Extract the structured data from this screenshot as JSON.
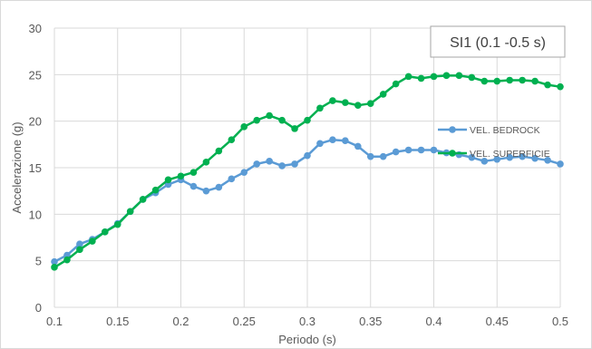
{
  "chart_data": {
    "type": "line",
    "xlabel": "Periodo (s)",
    "ylabel": "Accelerazione (g)",
    "xlim": [
      0.1,
      0.5
    ],
    "ylim": [
      0,
      30
    ],
    "xticks": [
      0.1,
      0.15,
      0.2,
      0.25,
      0.3,
      0.35,
      0.4,
      0.45,
      0.5
    ],
    "xtick_labels": [
      "0.1",
      "0.15",
      "0.2",
      "0.25",
      "0.3",
      "0.35",
      "0.4",
      "0.45",
      "0.5"
    ],
    "yticks": [
      0,
      5,
      10,
      15,
      20,
      25,
      30
    ],
    "ytick_labels": [
      "0",
      "5",
      "10",
      "15",
      "20",
      "25",
      "30"
    ],
    "grid": true,
    "legend_position": "right",
    "annotation": "SI1 (0.1 -0.5 s)",
    "series": [
      {
        "name": "VEL. BEDROCK",
        "color": "#5b9bd5",
        "x": [
          0.1,
          0.11,
          0.12,
          0.13,
          0.14,
          0.15,
          0.16,
          0.17,
          0.18,
          0.19,
          0.2,
          0.21,
          0.22,
          0.23,
          0.24,
          0.25,
          0.26,
          0.27,
          0.28,
          0.29,
          0.3,
          0.31,
          0.32,
          0.33,
          0.34,
          0.35,
          0.36,
          0.37,
          0.38,
          0.39,
          0.4,
          0.41,
          0.42,
          0.43,
          0.44,
          0.45,
          0.46,
          0.47,
          0.48,
          0.49,
          0.5
        ],
        "values": [
          4.9,
          5.6,
          6.8,
          7.3,
          8.1,
          9.0,
          10.3,
          11.6,
          12.3,
          13.2,
          13.7,
          13.0,
          12.5,
          12.9,
          13.8,
          14.5,
          15.4,
          15.7,
          15.2,
          15.4,
          16.3,
          17.6,
          18.0,
          17.9,
          17.3,
          16.2,
          16.2,
          16.7,
          16.9,
          16.9,
          16.9,
          16.6,
          16.4,
          16.1,
          15.7,
          15.9,
          16.1,
          16.2,
          16.0,
          15.8,
          15.4
        ]
      },
      {
        "name": "VEL. SUPERFICIE",
        "color": "#00b050",
        "x": [
          0.1,
          0.11,
          0.12,
          0.13,
          0.14,
          0.15,
          0.16,
          0.17,
          0.18,
          0.19,
          0.2,
          0.21,
          0.22,
          0.23,
          0.24,
          0.25,
          0.26,
          0.27,
          0.28,
          0.29,
          0.3,
          0.31,
          0.32,
          0.33,
          0.34,
          0.35,
          0.36,
          0.37,
          0.38,
          0.39,
          0.4,
          0.41,
          0.42,
          0.43,
          0.44,
          0.45,
          0.46,
          0.47,
          0.48,
          0.49,
          0.5
        ],
        "values": [
          4.3,
          5.1,
          6.2,
          7.1,
          8.1,
          8.9,
          10.3,
          11.6,
          12.6,
          13.7,
          14.1,
          14.5,
          15.6,
          16.8,
          18.0,
          19.4,
          20.1,
          20.6,
          20.1,
          19.2,
          20.1,
          21.4,
          22.2,
          22.0,
          21.7,
          21.9,
          22.9,
          24.0,
          24.8,
          24.6,
          24.8,
          24.9,
          24.9,
          24.7,
          24.3,
          24.3,
          24.4,
          24.4,
          24.3,
          23.9,
          23.7
        ]
      }
    ]
  }
}
